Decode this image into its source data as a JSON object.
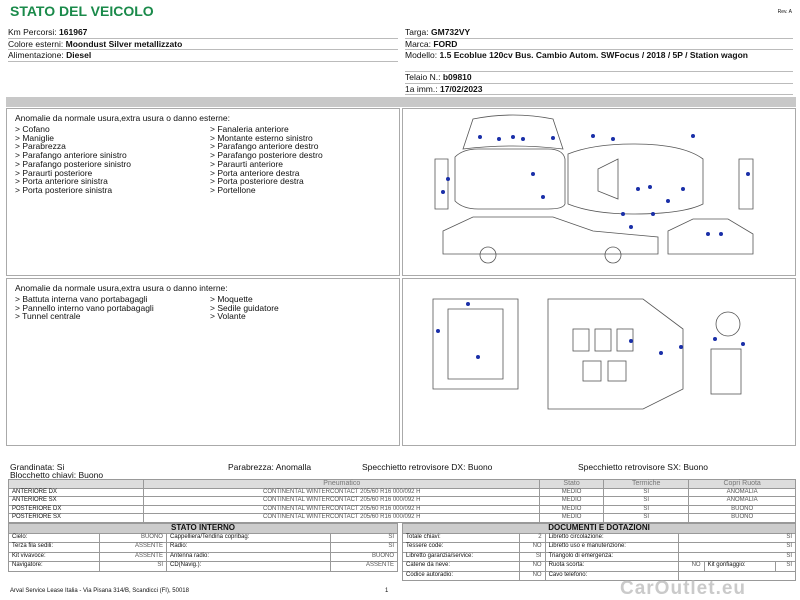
{
  "header": {
    "title": "STATO DEL VEICOLO",
    "revision": "Rev. A"
  },
  "vehicle_left": [
    {
      "label": "Km Percorsi:",
      "value": "161967"
    },
    {
      "label": "Colore esterni:",
      "value": "Moondust Silver metallizzato"
    },
    {
      "label": "Alimentazione:",
      "value": "Diesel"
    }
  ],
  "vehicle_right": [
    {
      "label": "Targa:",
      "value": "GM732VY"
    },
    {
      "label": "Marca:",
      "value": "FORD"
    },
    {
      "label": "Modello:",
      "value": "1.5 Ecoblue 120cv Bus. Cambio Autom. SWFocus / 2018 / 5P / Station wagon"
    },
    {
      "label": "Telaio N.:",
      "value": "b09810"
    },
    {
      "label": "1a imm.:",
      "value": "17/02/2023"
    }
  ],
  "external_damage": {
    "title": "Anomalie da normale usura,extra usura o danno esterne:",
    "columns": [
      [
        "> Cofano",
        "> Maniglie",
        "> Parabrezza",
        "> Parafango anteriore sinistro",
        "> Parafango posteriore sinistro",
        "> Paraurti posteriore",
        "> Porta anteriore sinistra",
        "> Porta posteriore sinistra"
      ],
      [
        "> Fanaleria anteriore",
        "> Montante esterno sinistro",
        "> Parafango anteriore destro",
        "> Parafango posteriore destro",
        "> Paraurti anteriore",
        "> Porta anteriore destra",
        "> Porta posteriore destra",
        "> Portellone"
      ]
    ]
  },
  "internal_damage": {
    "title": "Anomalie da normale usura,extra usura o danno interne:",
    "columns": [
      [
        "> Battuta interna vano portabagagli",
        "> Pannello interno vano portabagagli",
        "> Tunnel centrale"
      ],
      [
        "> Moquette",
        "> Sedile guidatore",
        "> Volante"
      ]
    ]
  },
  "conditions": [
    "Grandinata: Si",
    "Blocchetto chiavi: Buono",
    "Parabrezza: Anomalla",
    "Specchietto retrovisore DX: Buono",
    "Specchietto retrovisore SX: Buono"
  ],
  "tires": {
    "headers": [
      "Pneumatico",
      "Stato",
      "Termiche",
      "Copri Ruota"
    ],
    "rows": [
      [
        "ANTERIORE DX",
        "CONTINENTAL WINTERCONTACT 205/60 R16 000/092 H",
        "MEDIO",
        "SI",
        "ANOMALIA"
      ],
      [
        "ANTERIORE SX",
        "CONTINENTAL WINTERCONTACT 205/60 R16 000/092 H",
        "MEDIO",
        "SI",
        "ANOMALIA"
      ],
      [
        "POSTERIORE DX",
        "CONTINENTAL WINTERCONTACT 205/60 R16 000/092 H",
        "MEDIO",
        "SI",
        "BUONO"
      ],
      [
        "POSTERIORE SX",
        "CONTINENTAL WINTERCONTACT 205/60 R16 000/092 H",
        "MEDIO",
        "SI",
        "BUONO"
      ]
    ]
  },
  "internal_state": {
    "title": "STATO INTERNO",
    "rows": [
      [
        {
          "label": "Cielo:",
          "value": "BUONO"
        },
        {
          "label": "Cappelliera/Tendina copribag:",
          "value": "SI"
        }
      ],
      [
        {
          "label": "Terza fila sedili:",
          "value": "ASSENTE"
        },
        {
          "label": "Radio:",
          "value": "SI"
        }
      ],
      [
        {
          "label": "Kit vivavoce:",
          "value": "ASSENTE"
        },
        {
          "label": "Antenna radio:",
          "value": "BUONO"
        }
      ],
      [
        {
          "label": "Navigatore:",
          "value": "SI"
        },
        {
          "label": "CD(Navig.):",
          "value": "ASSENTE"
        }
      ]
    ]
  },
  "documents": {
    "title": "DOCUMENTI E DOTAZIONI",
    "rows": [
      [
        {
          "label": "Totale chiavi:",
          "value": "2"
        },
        {
          "label": "Libretto circolazione:",
          "value": "SI"
        }
      ],
      [
        {
          "label": "Tessere code:",
          "value": "NO"
        },
        {
          "label": "Libretto uso e manutenzione:",
          "value": "SI"
        }
      ],
      [
        {
          "label": "Libretto garanzia/service:",
          "value": "SI"
        },
        {
          "label": "Triangolo di emergenza:",
          "value": "SI"
        }
      ],
      [
        {
          "label": "Catene da neve:",
          "value": "NO"
        },
        {
          "label": "Ruota scorta:",
          "value": "NO"
        },
        {
          "label": "Kit gonfiaggio:",
          "value": "SI"
        }
      ],
      [
        {
          "label": "Codice autoradio:",
          "value": "NO"
        },
        {
          "label": "Cavo telefono:"
        }
      ]
    ]
  },
  "footer": {
    "address": "Arval Service Lease Italia - Via Pisana 314/B, Scandicci (FI), 50018",
    "page": "1",
    "watermark": "CarOutlet.eu"
  }
}
